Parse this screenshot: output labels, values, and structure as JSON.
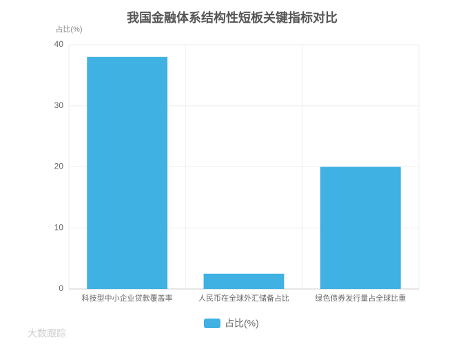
{
  "chart_data": {
    "type": "bar",
    "title": "我国金融体系结构性短板关键指标对比",
    "y_label": "占比(%)",
    "categories": [
      "科技型中小企业贷款覆盖率",
      "人民币在全球外汇储备占比",
      "绿色债券发行量占全球比重"
    ],
    "series": [
      {
        "name": "占比(%)",
        "color": "#3fb1e3",
        "values": [
          38,
          2.5,
          20
        ]
      }
    ],
    "ylim": [
      0,
      40
    ],
    "yticks": [
      0,
      10,
      20,
      30,
      40
    ],
    "grid": true,
    "legend": "bottom",
    "watermark": "大数跟踪"
  }
}
